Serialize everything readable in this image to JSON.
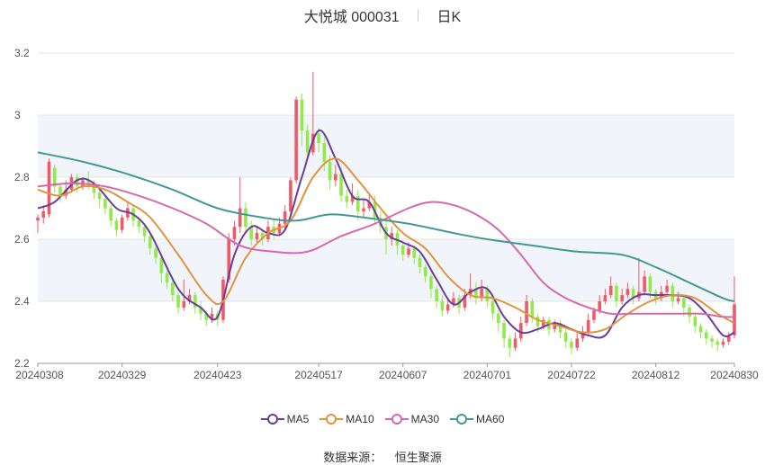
{
  "header": {
    "stock": "大悦城 000031",
    "period": "日K"
  },
  "source_label": "数据来源：",
  "source_name": "恒生聚源",
  "colors": {
    "up": "#f05a68",
    "down": "#8fea4a",
    "ma5": "#6a3d9a",
    "ma10": "#e0953c",
    "ma30": "#d767b0",
    "ma60": "#3f9a96",
    "grid_band": "#f2f4fb"
  },
  "chart_data": {
    "type": "candlestick",
    "ylim": [
      2.2,
      3.2
    ],
    "yticks": [
      "2.2",
      "2.4",
      "2.6",
      "2.8",
      "3",
      "3.2"
    ],
    "xticks": [
      {
        "label": "20240308",
        "index": 0
      },
      {
        "label": "20240329",
        "index": 15
      },
      {
        "label": "20240423",
        "index": 32
      },
      {
        "label": "20240517",
        "index": 50
      },
      {
        "label": "20240607",
        "index": 65
      },
      {
        "label": "20240701",
        "index": 80
      },
      {
        "label": "20240722",
        "index": 95
      },
      {
        "label": "20240812",
        "index": 110
      },
      {
        "label": "20240830",
        "index": 124
      }
    ],
    "candles": [
      [
        2.66,
        2.67,
        2.62,
        2.68
      ],
      [
        2.67,
        2.69,
        2.65,
        2.71
      ],
      [
        2.68,
        2.85,
        2.67,
        2.86
      ],
      [
        2.83,
        2.77,
        2.75,
        2.84
      ],
      [
        2.77,
        2.74,
        2.72,
        2.78
      ],
      [
        2.74,
        2.76,
        2.73,
        2.79
      ],
      [
        2.76,
        2.8,
        2.75,
        2.81
      ],
      [
        2.8,
        2.77,
        2.75,
        2.81
      ],
      [
        2.77,
        2.79,
        2.76,
        2.8
      ],
      [
        2.79,
        2.78,
        2.76,
        2.82
      ],
      [
        2.78,
        2.75,
        2.73,
        2.79
      ],
      [
        2.75,
        2.73,
        2.7,
        2.76
      ],
      [
        2.73,
        2.7,
        2.68,
        2.74
      ],
      [
        2.7,
        2.66,
        2.64,
        2.71
      ],
      [
        2.66,
        2.63,
        2.61,
        2.67
      ],
      [
        2.63,
        2.67,
        2.62,
        2.68
      ],
      [
        2.67,
        2.7,
        2.66,
        2.72
      ],
      [
        2.7,
        2.66,
        2.64,
        2.71
      ],
      [
        2.66,
        2.64,
        2.62,
        2.67
      ],
      [
        2.64,
        2.61,
        2.59,
        2.65
      ],
      [
        2.61,
        2.57,
        2.55,
        2.62
      ],
      [
        2.57,
        2.54,
        2.52,
        2.58
      ],
      [
        2.54,
        2.49,
        2.46,
        2.55
      ],
      [
        2.49,
        2.46,
        2.44,
        2.5
      ],
      [
        2.46,
        2.42,
        2.4,
        2.47
      ],
      [
        2.42,
        2.38,
        2.36,
        2.43
      ],
      [
        2.38,
        2.4,
        2.37,
        2.47
      ],
      [
        2.4,
        2.42,
        2.39,
        2.44
      ],
      [
        2.42,
        2.38,
        2.36,
        2.43
      ],
      [
        2.38,
        2.36,
        2.34,
        2.4
      ],
      [
        2.36,
        2.34,
        2.32,
        2.37
      ],
      [
        2.34,
        2.36,
        2.33,
        2.38
      ],
      [
        2.36,
        2.34,
        2.32,
        2.37
      ],
      [
        2.34,
        2.47,
        2.33,
        2.48
      ],
      [
        2.47,
        2.6,
        2.46,
        2.62
      ],
      [
        2.6,
        2.64,
        2.58,
        2.66
      ],
      [
        2.64,
        2.7,
        2.62,
        2.8
      ],
      [
        2.7,
        2.64,
        2.62,
        2.72
      ],
      [
        2.64,
        2.6,
        2.58,
        2.66
      ],
      [
        2.6,
        2.62,
        2.59,
        2.64
      ],
      [
        2.62,
        2.6,
        2.58,
        2.63
      ],
      [
        2.6,
        2.64,
        2.59,
        2.66
      ],
      [
        2.64,
        2.62,
        2.6,
        2.66
      ],
      [
        2.62,
        2.65,
        2.61,
        2.67
      ],
      [
        2.65,
        2.69,
        2.63,
        2.71
      ],
      [
        2.69,
        2.79,
        2.67,
        2.8
      ],
      [
        2.79,
        3.05,
        2.78,
        3.06
      ],
      [
        3.05,
        2.95,
        2.9,
        3.07
      ],
      [
        2.95,
        2.88,
        2.86,
        2.97
      ],
      [
        2.88,
        2.94,
        2.87,
        3.14
      ],
      [
        2.94,
        2.91,
        2.88,
        2.96
      ],
      [
        2.91,
        2.85,
        2.82,
        2.93
      ],
      [
        2.85,
        2.79,
        2.76,
        2.87
      ],
      [
        2.79,
        2.81,
        2.77,
        2.84
      ],
      [
        2.81,
        2.74,
        2.72,
        2.83
      ],
      [
        2.74,
        2.72,
        2.7,
        2.76
      ],
      [
        2.72,
        2.74,
        2.71,
        2.78
      ],
      [
        2.74,
        2.69,
        2.66,
        2.76
      ],
      [
        2.69,
        2.7,
        2.67,
        2.73
      ],
      [
        2.7,
        2.72,
        2.69,
        2.75
      ],
      [
        2.72,
        2.67,
        2.65,
        2.74
      ],
      [
        2.67,
        2.64,
        2.62,
        2.69
      ],
      [
        2.64,
        2.6,
        2.55,
        2.66
      ],
      [
        2.6,
        2.62,
        2.58,
        2.64
      ],
      [
        2.62,
        2.58,
        2.55,
        2.63
      ],
      [
        2.58,
        2.55,
        2.53,
        2.59
      ],
      [
        2.55,
        2.57,
        2.54,
        2.59
      ],
      [
        2.57,
        2.54,
        2.52,
        2.58
      ],
      [
        2.54,
        2.51,
        2.49,
        2.55
      ],
      [
        2.51,
        2.48,
        2.46,
        2.52
      ],
      [
        2.48,
        2.44,
        2.41,
        2.49
      ],
      [
        2.44,
        2.4,
        2.38,
        2.45
      ],
      [
        2.4,
        2.37,
        2.35,
        2.42
      ],
      [
        2.37,
        2.39,
        2.36,
        2.41
      ],
      [
        2.39,
        2.41,
        2.38,
        2.43
      ],
      [
        2.41,
        2.38,
        2.36,
        2.42
      ],
      [
        2.38,
        2.42,
        2.37,
        2.44
      ],
      [
        2.42,
        2.44,
        2.41,
        2.49
      ],
      [
        2.44,
        2.41,
        2.39,
        2.46
      ],
      [
        2.41,
        2.44,
        2.4,
        2.47
      ],
      [
        2.44,
        2.4,
        2.38,
        2.45
      ],
      [
        2.4,
        2.36,
        2.34,
        2.41
      ],
      [
        2.36,
        2.33,
        2.3,
        2.37
      ],
      [
        2.33,
        2.28,
        2.25,
        2.34
      ],
      [
        2.28,
        2.25,
        2.22,
        2.29
      ],
      [
        2.25,
        2.28,
        2.24,
        2.3
      ],
      [
        2.28,
        2.33,
        2.27,
        2.35
      ],
      [
        2.33,
        2.4,
        2.32,
        2.42
      ],
      [
        2.4,
        2.35,
        2.33,
        2.41
      ],
      [
        2.35,
        2.32,
        2.3,
        2.36
      ],
      [
        2.32,
        2.34,
        2.31,
        2.35
      ],
      [
        2.34,
        2.31,
        2.29,
        2.35
      ],
      [
        2.31,
        2.33,
        2.3,
        2.34
      ],
      [
        2.33,
        2.3,
        2.28,
        2.34
      ],
      [
        2.3,
        2.27,
        2.25,
        2.31
      ],
      [
        2.27,
        2.25,
        2.23,
        2.28
      ],
      [
        2.25,
        2.28,
        2.24,
        2.3
      ],
      [
        2.28,
        2.3,
        2.27,
        2.32
      ],
      [
        2.3,
        2.34,
        2.29,
        2.36
      ],
      [
        2.34,
        2.37,
        2.33,
        2.38
      ],
      [
        2.37,
        2.4,
        2.36,
        2.42
      ],
      [
        2.4,
        2.42,
        2.39,
        2.44
      ],
      [
        2.42,
        2.45,
        2.41,
        2.48
      ],
      [
        2.45,
        2.4,
        2.38,
        2.46
      ],
      [
        2.4,
        2.42,
        2.39,
        2.44
      ],
      [
        2.42,
        2.44,
        2.41,
        2.46
      ],
      [
        2.44,
        2.41,
        2.39,
        2.45
      ],
      [
        2.41,
        2.43,
        2.4,
        2.54
      ],
      [
        2.43,
        2.48,
        2.42,
        2.5
      ],
      [
        2.48,
        2.43,
        2.41,
        2.49
      ],
      [
        2.43,
        2.41,
        2.39,
        2.44
      ],
      [
        2.41,
        2.43,
        2.4,
        2.45
      ],
      [
        2.43,
        2.45,
        2.42,
        2.47
      ],
      [
        2.45,
        2.4,
        2.38,
        2.46
      ],
      [
        2.4,
        2.41,
        2.39,
        2.43
      ],
      [
        2.41,
        2.38,
        2.35,
        2.42
      ],
      [
        2.38,
        2.35,
        2.33,
        2.39
      ],
      [
        2.35,
        2.32,
        2.3,
        2.36
      ],
      [
        2.32,
        2.3,
        2.28,
        2.33
      ],
      [
        2.3,
        2.28,
        2.26,
        2.31
      ],
      [
        2.28,
        2.27,
        2.25,
        2.29
      ],
      [
        2.27,
        2.26,
        2.24,
        2.28
      ],
      [
        2.26,
        2.27,
        2.25,
        2.28
      ],
      [
        2.27,
        2.29,
        2.26,
        2.3
      ],
      [
        2.29,
        2.39,
        2.28,
        2.48
      ]
    ],
    "series": [
      {
        "name": "MA5",
        "color": "#6a3d9a",
        "points": [
          [
            0,
            2.7
          ],
          [
            3,
            2.72
          ],
          [
            7,
            2.79
          ],
          [
            10,
            2.78
          ],
          [
            14,
            2.7
          ],
          [
            17,
            2.68
          ],
          [
            20,
            2.62
          ],
          [
            25,
            2.44
          ],
          [
            29,
            2.38
          ],
          [
            32,
            2.35
          ],
          [
            35,
            2.55
          ],
          [
            38,
            2.64
          ],
          [
            41,
            2.62
          ],
          [
            44,
            2.63
          ],
          [
            47,
            2.8
          ],
          [
            50,
            2.95
          ],
          [
            53,
            2.86
          ],
          [
            56,
            2.74
          ],
          [
            59,
            2.72
          ],
          [
            62,
            2.62
          ],
          [
            65,
            2.59
          ],
          [
            68,
            2.56
          ],
          [
            71,
            2.47
          ],
          [
            74,
            2.39
          ],
          [
            77,
            2.43
          ],
          [
            80,
            2.44
          ],
          [
            83,
            2.35
          ],
          [
            86,
            2.3
          ],
          [
            89,
            2.31
          ],
          [
            92,
            2.33
          ],
          [
            95,
            2.31
          ],
          [
            98,
            2.29
          ],
          [
            101,
            2.29
          ],
          [
            104,
            2.38
          ],
          [
            107,
            2.42
          ],
          [
            110,
            2.42
          ],
          [
            113,
            2.42
          ],
          [
            116,
            2.41
          ],
          [
            119,
            2.36
          ],
          [
            122,
            2.29
          ],
          [
            124,
            2.3
          ]
        ]
      },
      {
        "name": "MA10",
        "color": "#e0953c",
        "points": [
          [
            0,
            2.76
          ],
          [
            4,
            2.74
          ],
          [
            8,
            2.77
          ],
          [
            12,
            2.76
          ],
          [
            16,
            2.72
          ],
          [
            20,
            2.67
          ],
          [
            25,
            2.55
          ],
          [
            30,
            2.42
          ],
          [
            33,
            2.4
          ],
          [
            37,
            2.54
          ],
          [
            41,
            2.62
          ],
          [
            45,
            2.66
          ],
          [
            49,
            2.8
          ],
          [
            53,
            2.86
          ],
          [
            57,
            2.79
          ],
          [
            61,
            2.7
          ],
          [
            65,
            2.62
          ],
          [
            69,
            2.57
          ],
          [
            73,
            2.48
          ],
          [
            77,
            2.42
          ],
          [
            81,
            2.41
          ],
          [
            85,
            2.38
          ],
          [
            89,
            2.34
          ],
          [
            93,
            2.32
          ],
          [
            97,
            2.3
          ],
          [
            101,
            2.31
          ],
          [
            105,
            2.36
          ],
          [
            109,
            2.4
          ],
          [
            113,
            2.42
          ],
          [
            117,
            2.41
          ],
          [
            121,
            2.36
          ],
          [
            124,
            2.33
          ]
        ]
      },
      {
        "name": "MA30",
        "color": "#d767b0",
        "points": [
          [
            0,
            2.77
          ],
          [
            6,
            2.78
          ],
          [
            12,
            2.77
          ],
          [
            18,
            2.74
          ],
          [
            24,
            2.7
          ],
          [
            30,
            2.65
          ],
          [
            36,
            2.58
          ],
          [
            42,
            2.56
          ],
          [
            48,
            2.56
          ],
          [
            54,
            2.61
          ],
          [
            60,
            2.65
          ],
          [
            66,
            2.7
          ],
          [
            70,
            2.72
          ],
          [
            74,
            2.71
          ],
          [
            78,
            2.68
          ],
          [
            82,
            2.63
          ],
          [
            86,
            2.55
          ],
          [
            90,
            2.46
          ],
          [
            94,
            2.41
          ],
          [
            98,
            2.38
          ],
          [
            102,
            2.36
          ],
          [
            106,
            2.36
          ],
          [
            110,
            2.36
          ],
          [
            114,
            2.36
          ],
          [
            118,
            2.36
          ],
          [
            122,
            2.35
          ],
          [
            124,
            2.35
          ]
        ]
      },
      {
        "name": "MA60",
        "color": "#3f9a96",
        "points": [
          [
            0,
            2.88
          ],
          [
            8,
            2.85
          ],
          [
            16,
            2.81
          ],
          [
            24,
            2.76
          ],
          [
            32,
            2.7
          ],
          [
            40,
            2.67
          ],
          [
            46,
            2.66
          ],
          [
            52,
            2.68
          ],
          [
            58,
            2.67
          ],
          [
            66,
            2.65
          ],
          [
            74,
            2.62
          ],
          [
            80,
            2.6
          ],
          [
            88,
            2.58
          ],
          [
            96,
            2.56
          ],
          [
            104,
            2.55
          ],
          [
            110,
            2.51
          ],
          [
            116,
            2.46
          ],
          [
            122,
            2.41
          ],
          [
            124,
            2.4
          ]
        ]
      }
    ]
  }
}
